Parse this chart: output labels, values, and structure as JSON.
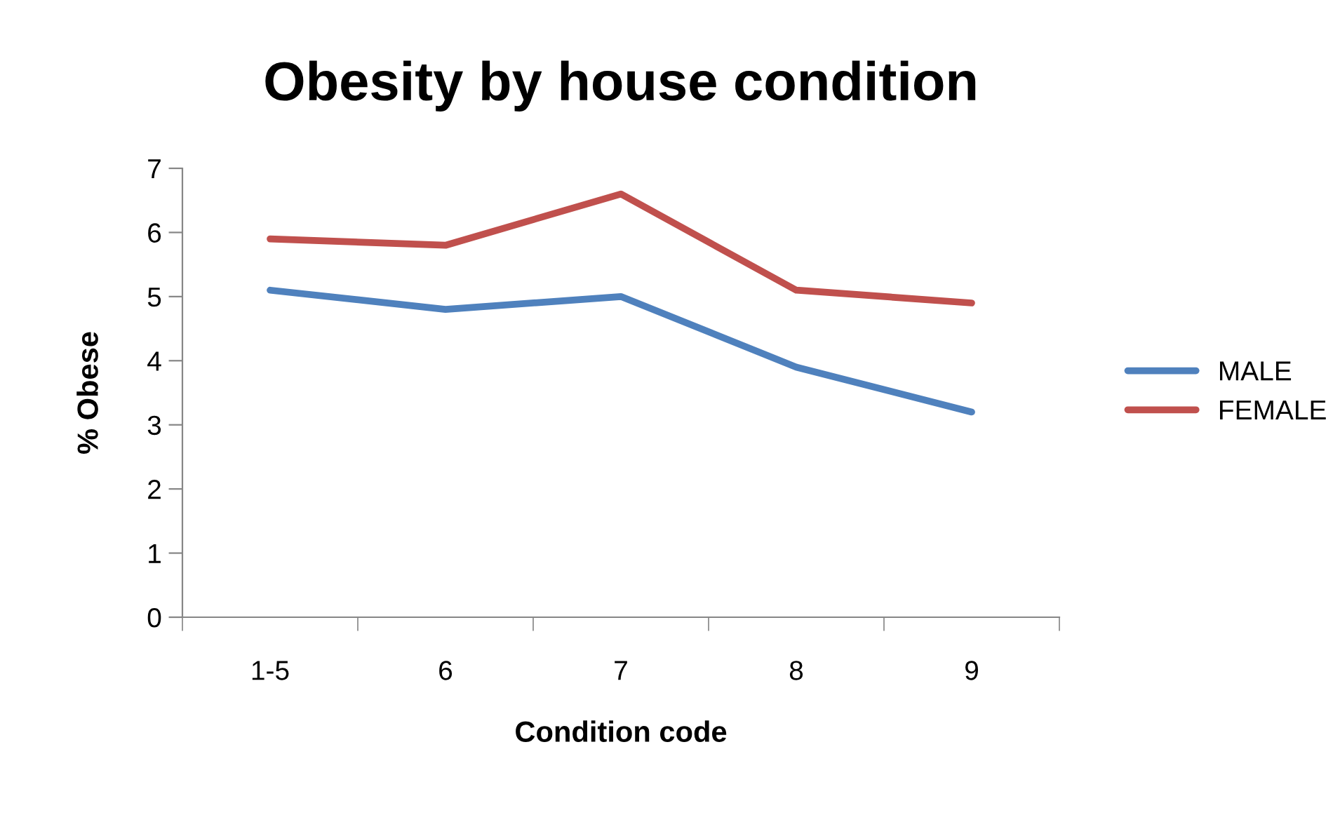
{
  "chart_data": {
    "type": "line",
    "title": "Obesity by house condition",
    "xlabel": "Condition code",
    "ylabel": "% Obese",
    "categories": [
      "1-5",
      "6",
      "7",
      "8",
      "9"
    ],
    "series": [
      {
        "name": "MALE",
        "color": "#4f81bd",
        "values": [
          5.1,
          4.8,
          5.0,
          3.9,
          3.2
        ]
      },
      {
        "name": "FEMALE",
        "color": "#c0504d",
        "values": [
          5.9,
          5.8,
          6.6,
          5.1,
          4.9
        ]
      }
    ],
    "ylim": [
      0,
      7
    ],
    "yticks": [
      0,
      1,
      2,
      3,
      4,
      5,
      6,
      7
    ],
    "grid": false,
    "legend": "right",
    "marker": "none",
    "line_style": "solid"
  }
}
